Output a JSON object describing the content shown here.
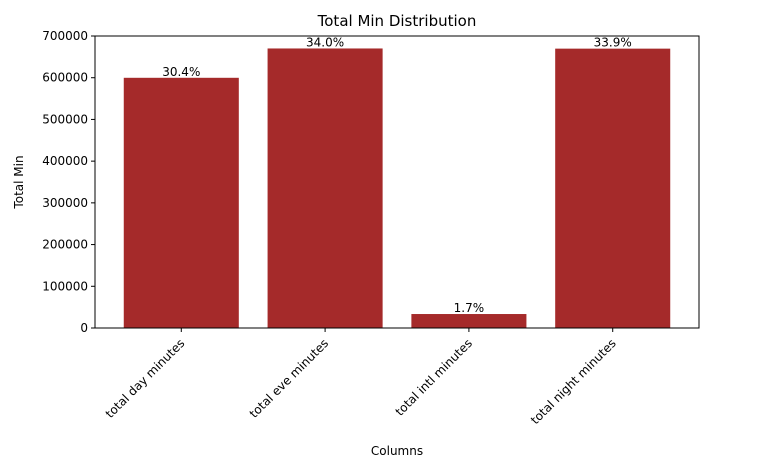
{
  "chart_data": {
    "type": "bar",
    "title": "Total Min Distribution",
    "xlabel": "Columns",
    "ylabel": "Total Min",
    "categories": [
      "total day minutes",
      "total eve minutes",
      "total intl minutes",
      "total night minutes"
    ],
    "values": [
      599800,
      670100,
      33500,
      669700
    ],
    "bar_labels": [
      "30.4%",
      "34.0%",
      "1.7%",
      "33.9%"
    ],
    "ylim": [
      0,
      700000
    ],
    "yticks": [
      0,
      100000,
      200000,
      300000,
      400000,
      500000,
      600000,
      700000
    ],
    "bar_color": "#a52a2a",
    "grid": false
  }
}
